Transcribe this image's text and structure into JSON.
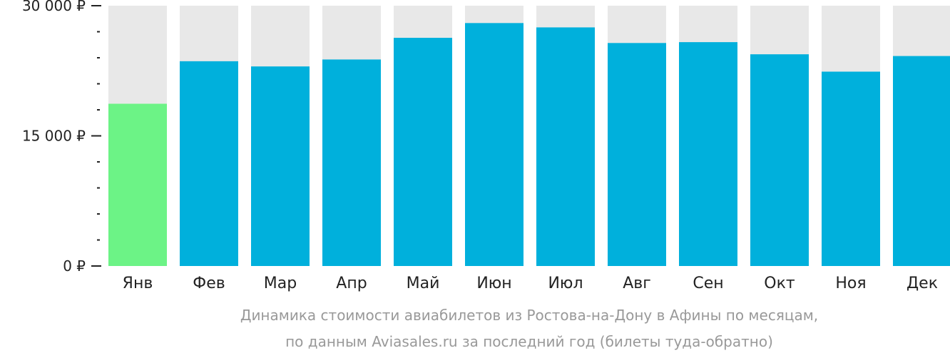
{
  "chart_data": {
    "type": "bar",
    "categories": [
      "Янв",
      "Фев",
      "Мар",
      "Апр",
      "Май",
      "Июн",
      "Июл",
      "Авг",
      "Сен",
      "Окт",
      "Ноя",
      "Дек"
    ],
    "values": [
      18700,
      23600,
      23000,
      23800,
      26300,
      28000,
      27500,
      25700,
      25800,
      24400,
      22400,
      24200
    ],
    "ylim": [
      0,
      30000
    ],
    "yticks": [
      {
        "value": 0,
        "label": "0 ₽"
      },
      {
        "value": 15000,
        "label": "15 000 ₽"
      },
      {
        "value": 30000,
        "label": "30 000 ₽"
      }
    ],
    "minor_tick_step": 3000,
    "highlight_index": 0,
    "colors": {
      "bar": "#00b0dc",
      "highlight": "#6cf386",
      "track": "#e8e8e8",
      "axis_text": "#222222",
      "caption": "#999999"
    }
  },
  "caption": {
    "line1": "Динамика стоимости авиабилетов из Ростова-на-Дону в Афины по месяцам,",
    "line2": "по данным Aviasales.ru за последний год (билеты туда-обратно)"
  }
}
